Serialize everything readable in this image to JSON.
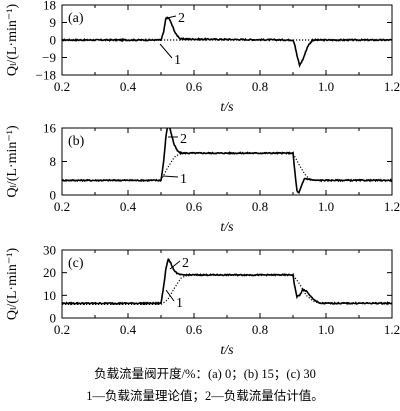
{
  "chart_data": [
    {
      "type": "line",
      "panel_label": "(a)",
      "xlabel": "t/s",
      "ylabel": "Qₗ/(L·min⁻¹)",
      "xlim": [
        0.2,
        1.2
      ],
      "ylim": [
        -18,
        18
      ],
      "xticks": [
        "0.2",
        "0.4",
        "0.6",
        "0.8",
        "1.0",
        "1.2"
      ],
      "yticks": [
        "18",
        "9",
        "0",
        "−9",
        "−18"
      ],
      "series": [
        {
          "name": "1",
          "style": "dotted",
          "x": [
            0.2,
            1.2
          ],
          "y": [
            0,
            0
          ]
        },
        {
          "name": "2",
          "style": "solid",
          "x": [
            0.2,
            0.5,
            0.508,
            0.515,
            0.525,
            0.535,
            0.545,
            0.56,
            0.9,
            0.905,
            0.912,
            0.92,
            0.93,
            0.945,
            0.96,
            1.2
          ],
          "y": [
            0,
            0,
            4,
            11.5,
            11,
            7,
            3,
            0.5,
            0,
            -2,
            -8,
            -13,
            -10,
            -3,
            0,
            0
          ]
        }
      ],
      "callouts": [
        "1",
        "2"
      ]
    },
    {
      "type": "line",
      "panel_label": "(b)",
      "xlabel": "t/s",
      "ylabel": "Qₗ/(L·min⁻¹)",
      "xlim": [
        0.2,
        1.2
      ],
      "ylim": [
        0,
        16
      ],
      "xticks": [
        "0.2",
        "0.4",
        "0.6",
        "0.8",
        "1.0",
        "1.2"
      ],
      "yticks": [
        "16",
        "8",
        "0"
      ],
      "series": [
        {
          "name": "1",
          "style": "dotted",
          "x": [
            0.2,
            0.5,
            0.52,
            0.54,
            0.56,
            0.9,
            0.92,
            0.94,
            0.96,
            1.2
          ],
          "y": [
            3.5,
            3.5,
            6.5,
            9,
            10,
            10,
            7,
            4.5,
            3.5,
            3.5
          ]
        },
        {
          "name": "2",
          "style": "solid",
          "x": [
            0.2,
            0.5,
            0.508,
            0.515,
            0.522,
            0.53,
            0.54,
            0.55,
            0.56,
            0.9,
            0.905,
            0.912,
            0.918,
            0.925,
            0.935,
            0.95,
            0.97,
            1.2
          ],
          "y": [
            3.5,
            3.5,
            8,
            14,
            17.5,
            15,
            12,
            10.5,
            10,
            10,
            6,
            1,
            0.5,
            2,
            4,
            3.7,
            3.5,
            3.5
          ]
        }
      ],
      "callouts": [
        "1",
        "2"
      ]
    },
    {
      "type": "line",
      "panel_label": "(c)",
      "xlabel": "t/s",
      "ylabel": "Qₗ/(L·min⁻¹)",
      "xlim": [
        0.2,
        1.2
      ],
      "ylim": [
        0,
        30
      ],
      "xticks": [
        "0.2",
        "0.4",
        "0.6",
        "0.8",
        "1.0",
        "1.2"
      ],
      "yticks": [
        "30",
        "20",
        "10",
        "0"
      ],
      "series": [
        {
          "name": "1",
          "style": "dotted",
          "x": [
            0.2,
            0.5,
            0.52,
            0.54,
            0.56,
            0.58,
            0.9,
            0.92,
            0.94,
            0.96,
            0.98,
            1.2
          ],
          "y": [
            6,
            6,
            8,
            13,
            17.5,
            19,
            19,
            15,
            10,
            7.5,
            6.5,
            6.5
          ]
        },
        {
          "name": "2",
          "style": "solid",
          "x": [
            0.2,
            0.5,
            0.508,
            0.515,
            0.522,
            0.53,
            0.54,
            0.55,
            0.56,
            0.9,
            0.905,
            0.912,
            0.92,
            0.93,
            0.94,
            0.95,
            0.965,
            0.98,
            1.2
          ],
          "y": [
            6.5,
            6.5,
            14,
            22,
            26,
            24,
            21,
            19.5,
            19,
            19,
            14,
            9.5,
            10,
            12.5,
            12,
            10,
            8,
            6.5,
            6.5
          ]
        }
      ],
      "callouts": [
        "1",
        "2"
      ]
    }
  ],
  "caption": {
    "line1": "负载流量阀开度/%：(a) 0；(b) 15；(c) 30",
    "line2": "1—负载流量理论值；2—负载流量估计值。"
  }
}
